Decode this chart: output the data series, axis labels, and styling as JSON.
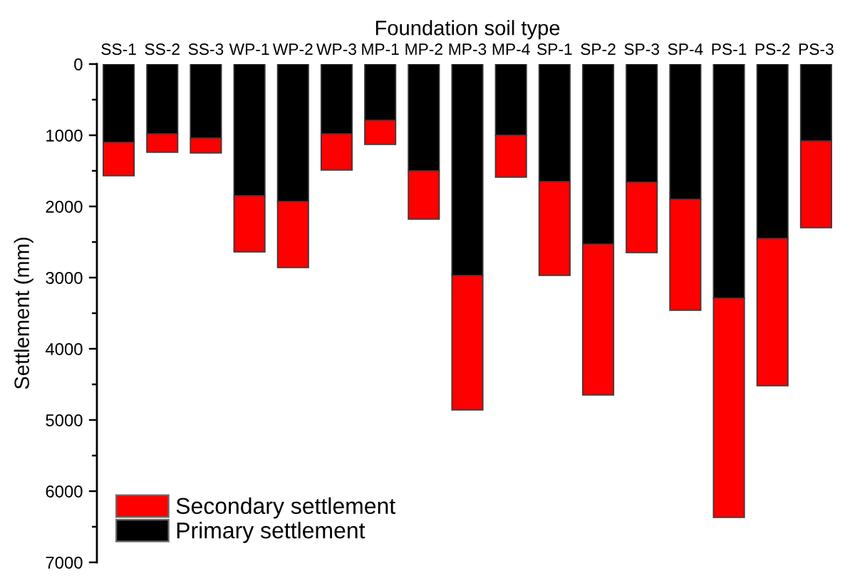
{
  "chart_data": {
    "type": "bar",
    "stacked": true,
    "xlabel": "Foundation soil type",
    "ylabel": "Settlement (mm)",
    "categories": [
      "SS-1",
      "SS-2",
      "SS-3",
      "WP-1",
      "WP-2",
      "WP-3",
      "MP-1",
      "MP-2",
      "MP-3",
      "MP-4",
      "SP-1",
      "SP-2",
      "SP-3",
      "SP-4",
      "PS-1",
      "PS-2",
      "PS-3"
    ],
    "series": [
      {
        "name": "Primary settlement",
        "color": "#000000",
        "values": [
          1100,
          980,
          1040,
          1850,
          1930,
          980,
          790,
          1500,
          2970,
          1000,
          1650,
          2530,
          1660,
          1900,
          3290,
          2450,
          1080
        ]
      },
      {
        "name": "Secondary settlement",
        "color": "#ff0000",
        "values": [
          470,
          260,
          210,
          790,
          930,
          510,
          340,
          680,
          1890,
          590,
          1320,
          2120,
          990,
          1560,
          3080,
          2070,
          1220
        ]
      }
    ],
    "ylim": [
      7000,
      0
    ],
    "yticks": [
      0,
      {
        "value": 500,
        "label": null
      },
      1000,
      {
        "value": 1500,
        "label": null
      },
      2000,
      {
        "value": 2500,
        "label": null
      },
      3000,
      {
        "value": 3500,
        "label": null
      },
      4000,
      {
        "value": 4500,
        "label": null
      },
      5000,
      {
        "value": 5500,
        "label": null
      },
      6000,
      {
        "value": 6500,
        "label": null
      },
      7000
    ],
    "grid": false,
    "legend": "bottom left"
  }
}
